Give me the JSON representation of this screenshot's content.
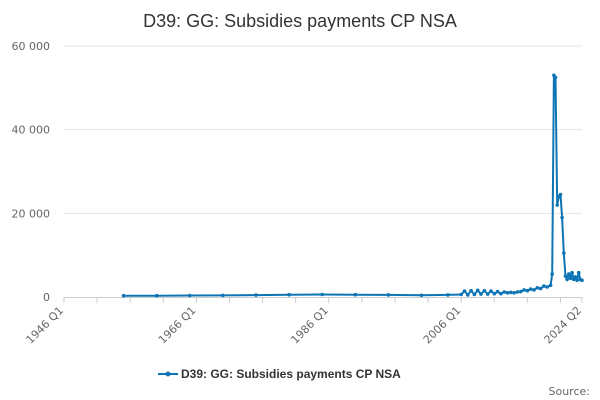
{
  "chart_data": {
    "type": "line",
    "title": "D39: GG: Subsidies payments CP NSA",
    "xlabel": "",
    "ylabel": "",
    "ylim": [
      0,
      60000
    ],
    "yticks": [
      0,
      20000,
      40000,
      60000
    ],
    "ytick_labels": [
      "0",
      "20 000",
      "40 000",
      "60 000"
    ],
    "xlim": [
      "1946 Q1",
      "2024 Q2"
    ],
    "xtick_labels": [
      "1946 Q1",
      "1966 Q1",
      "1986 Q1",
      "2006 Q1",
      "2024 Q2"
    ],
    "grid": "horizontal",
    "legend_position": "bottom",
    "color": "#0d75b5",
    "series": [
      {
        "name": "D39: GG: Subsidies payments CP NSA",
        "points": [
          [
            "1955 Q1",
            300
          ],
          [
            "1960 Q1",
            300
          ],
          [
            "1965 Q1",
            350
          ],
          [
            "1970 Q1",
            380
          ],
          [
            "1975 Q1",
            450
          ],
          [
            "1980 Q1",
            550
          ],
          [
            "1985 Q1",
            600
          ],
          [
            "1990 Q1",
            550
          ],
          [
            "1995 Q1",
            500
          ],
          [
            "2000 Q1",
            400
          ],
          [
            "2004 Q1",
            500
          ],
          [
            "2006 Q1",
            600
          ],
          [
            "2006 Q3",
            1400
          ],
          [
            "2007 Q1",
            500
          ],
          [
            "2007 Q3",
            1500
          ],
          [
            "2008 Q1",
            600
          ],
          [
            "2008 Q3",
            1600
          ],
          [
            "2009 Q1",
            700
          ],
          [
            "2009 Q3",
            1500
          ],
          [
            "2010 Q1",
            700
          ],
          [
            "2010 Q3",
            1400
          ],
          [
            "2011 Q1",
            800
          ],
          [
            "2011 Q3",
            1300
          ],
          [
            "2012 Q1",
            800
          ],
          [
            "2012 Q3",
            1200
          ],
          [
            "2013 Q1",
            1000
          ],
          [
            "2013 Q3",
            1100
          ],
          [
            "2014 Q1",
            1000
          ],
          [
            "2014 Q3",
            1200
          ],
          [
            "2015 Q1",
            1300
          ],
          [
            "2015 Q3",
            1700
          ],
          [
            "2016 Q1",
            1500
          ],
          [
            "2016 Q3",
            1900
          ],
          [
            "2017 Q1",
            1700
          ],
          [
            "2017 Q3",
            2200
          ],
          [
            "2018 Q1",
            2000
          ],
          [
            "2018 Q3",
            2600
          ],
          [
            "2019 Q1",
            2400
          ],
          [
            "2019 Q3",
            2800
          ],
          [
            "2019 Q4",
            5500
          ],
          [
            "2020 Q1",
            53000
          ],
          [
            "2020 Q2",
            52500
          ],
          [
            "2020 Q3",
            22000
          ],
          [
            "2020 Q4",
            24000
          ],
          [
            "2021 Q1",
            24500
          ],
          [
            "2021 Q2",
            19000
          ],
          [
            "2021 Q3",
            10500
          ],
          [
            "2021 Q4",
            5000
          ],
          [
            "2022 Q1",
            4200
          ],
          [
            "2022 Q2",
            5500
          ],
          [
            "2022 Q3",
            4500
          ],
          [
            "2022 Q4",
            5800
          ],
          [
            "2023 Q1",
            4200
          ],
          [
            "2023 Q2",
            4800
          ],
          [
            "2023 Q3",
            4000
          ],
          [
            "2023 Q4",
            5800
          ],
          [
            "2024 Q1",
            4200
          ],
          [
            "2024 Q2",
            4000
          ]
        ]
      }
    ],
    "source_label": "Source:"
  }
}
